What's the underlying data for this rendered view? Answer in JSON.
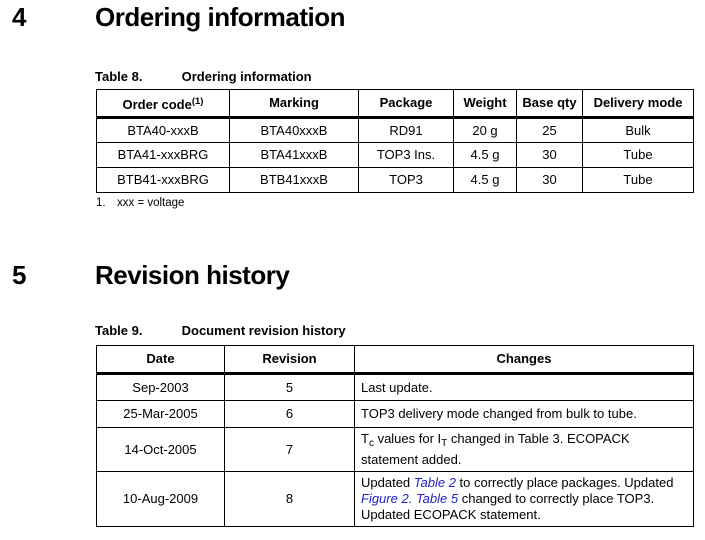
{
  "page": {
    "link_color": "#2222cc",
    "text_color": "#000000",
    "background_color": "#ffffff"
  },
  "sections": {
    "ordering": {
      "number": "4",
      "title": "Ordering information"
    },
    "revision": {
      "number": "5",
      "title": "Revision history"
    }
  },
  "table8": {
    "caption_label": "Table 8.",
    "caption_title": "Ordering information",
    "headers": [
      [
        {
          "t": "Order code"
        },
        {
          "t": "(1)",
          "s": "sup"
        }
      ],
      "Marking",
      "Package",
      "Weight",
      "Base qty",
      "Delivery mode"
    ],
    "rows": [
      [
        "BTA40-xxxB",
        "BTA40xxxB",
        "RD91",
        "20 g",
        "25",
        "Bulk"
      ],
      [
        "BTA41-xxxBRG",
        "BTA41xxxB",
        "TOP3 Ins.",
        "4.5 g",
        "30",
        "Tube"
      ],
      [
        "BTB41-xxxBRG",
        "BTB41xxxB",
        "TOP3",
        "4.5 g",
        "30",
        "Tube"
      ]
    ],
    "footnote_marker": "1.",
    "footnote_text": "xxx = voltage"
  },
  "table9": {
    "caption_label": "Table 9.",
    "caption_title": "Document revision history",
    "headers": [
      "Date",
      "Revision",
      "Changes"
    ],
    "rows": [
      [
        "Sep-2003",
        "5",
        [
          {
            "t": "Last update."
          }
        ]
      ],
      [
        "25-Mar-2005",
        "6",
        [
          {
            "t": "TOP3 delivery mode changed from bulk to tube."
          }
        ]
      ],
      [
        "14-Oct-2005",
        "7",
        [
          {
            "t": "T"
          },
          {
            "t": "c",
            "s": "sub"
          },
          {
            "t": " values for I"
          },
          {
            "t": "T",
            "s": "sub"
          },
          {
            "t": " changed in Table 3. ECOPACK statement added."
          }
        ]
      ],
      [
        "10-Aug-2009",
        "8",
        [
          {
            "t": "Updated "
          },
          {
            "t": "Table 2",
            "s": "link"
          },
          {
            "t": " to correctly place packages. Updated "
          },
          {
            "t": "Figure 2.",
            "s": "link"
          },
          {
            "t": " "
          },
          {
            "t": "Table 5",
            "s": "link"
          },
          {
            "t": " changed to correctly place TOP3. Updated ECOPACK statement."
          }
        ]
      ]
    ]
  }
}
